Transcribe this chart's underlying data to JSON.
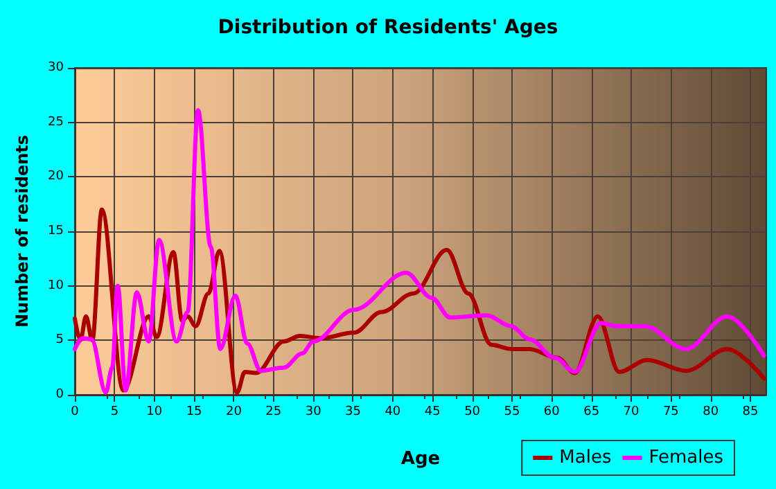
{
  "chart_data": {
    "type": "line",
    "title": "Distribution of Residents' Ages",
    "xlabel": "Age",
    "ylabel": "Number of residents",
    "xlim": [
      0,
      87
    ],
    "xticks": [
      0,
      5,
      10,
      15,
      20,
      25,
      30,
      35,
      40,
      45,
      50,
      55,
      60,
      65,
      70,
      75,
      80,
      85
    ],
    "ylim": [
      0,
      30
    ],
    "yticks": [
      0,
      5,
      10,
      15,
      20,
      25,
      30
    ],
    "grid": true,
    "legend": "bottom right",
    "marker": "none",
    "line_style": "solid",
    "series": [
      {
        "name": "Males",
        "color": "#aa0000",
        "x": [
          0,
          0.7,
          1.4,
          2.2,
          3.4,
          6.1,
          9.3,
          10.3,
          12.4,
          13.5,
          14.2,
          15.2,
          16.8,
          18.2,
          20.4,
          21.4,
          22.8,
          26.3,
          28.3,
          31,
          35.1,
          38.6,
          42.6,
          46.8,
          49.5,
          52.4,
          54.9,
          57.2,
          60.7,
          62.9,
          65.8,
          68.5,
          72,
          76.9,
          82.1,
          86.7
        ],
        "values": [
          7,
          5,
          7.2,
          5,
          17,
          0.4,
          7.2,
          5.3,
          13.1,
          6.8,
          7.2,
          6.3,
          9.3,
          13.2,
          0.2,
          2.1,
          2,
          4.9,
          5.4,
          5.2,
          5.7,
          7.6,
          9.3,
          13.3,
          9.3,
          4.6,
          4.2,
          4.2,
          3.4,
          2,
          7.2,
          2.1,
          3.2,
          2.2,
          4.2,
          1.5
        ]
      },
      {
        "name": "Females",
        "color": "#ff00ff",
        "x": [
          0,
          1,
          2.1,
          3.9,
          4.7,
          5.4,
          6.4,
          7.8,
          9.3,
          10.6,
          12.8,
          14.2,
          15.5,
          17.1,
          18.3,
          20.2,
          21.7,
          23.4,
          26.3,
          28.6,
          30,
          35.1,
          41.7,
          44.9,
          47.2,
          51.8,
          54.9,
          57.2,
          60.4,
          62.9,
          66.2,
          68.2,
          71.7,
          76.9,
          82.1,
          86.7
        ],
        "values": [
          4.2,
          5.2,
          5.1,
          0.2,
          2.5,
          10,
          0.4,
          9.4,
          4.9,
          14.2,
          4.9,
          7.6,
          26.1,
          13.6,
          4.2,
          9.1,
          4.7,
          2.2,
          2.5,
          3.8,
          4.9,
          7.8,
          11.2,
          8.9,
          7.1,
          7.3,
          6.3,
          5.1,
          3.4,
          2.1,
          6.6,
          6.3,
          6.3,
          4.2,
          7.2,
          3.6
        ]
      }
    ]
  }
}
